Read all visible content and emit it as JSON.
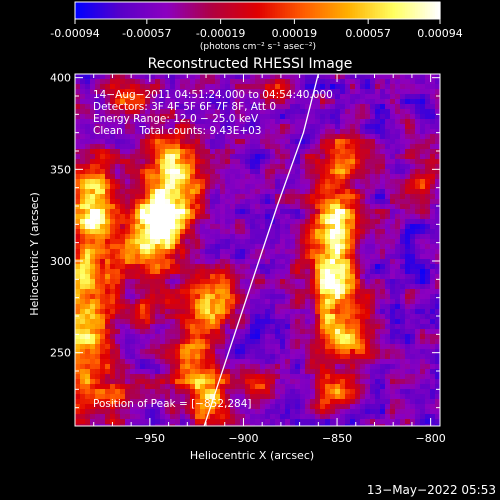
{
  "colorbar": {
    "tick_labels": [
      "-0.00094",
      "-0.00057",
      "-0.00019",
      "0.00019",
      "0.00057",
      "0.00094"
    ],
    "tick_values": [
      -0.00094,
      -0.00057,
      -0.00019,
      0.00019,
      0.00057,
      0.00094
    ],
    "range": [
      -0.00094,
      0.00094
    ],
    "units_label": "(photons cm⁻² s⁻¹ asec⁻²)",
    "colors": [
      "#0000ff",
      "#5a00c8",
      "#8c00c0",
      "#b00040",
      "#e00000",
      "#ff5a00",
      "#ffb000",
      "#ffff60",
      "#ffffff"
    ]
  },
  "chart_data": {
    "type": "heatmap",
    "title": "Reconstructed RHESSI Image",
    "xlabel": "Heliocentric X (arcsec)",
    "ylabel": "Heliocentric Y (arcsec)",
    "xlim": [
      -990,
      -795
    ],
    "ylim": [
      210,
      402
    ],
    "x_ticks": [
      -950,
      -900,
      -850,
      -800
    ],
    "x_tick_labels": [
      "−950",
      "−900",
      "−850",
      "−800"
    ],
    "y_ticks": [
      250,
      300,
      350,
      400
    ],
    "y_tick_labels": [
      "250",
      "300",
      "350",
      "400"
    ],
    "sources": [
      {
        "x": -985,
        "y": 270,
        "sx": 10,
        "sy": 40,
        "amp": 0.85
      },
      {
        "x": -978,
        "y": 335,
        "sx": 8,
        "sy": 20,
        "amp": 0.65
      },
      {
        "x": -938,
        "y": 345,
        "sx": 11,
        "sy": 17,
        "amp": 1.0
      },
      {
        "x": -953,
        "y": 308,
        "sx": 10,
        "sy": 12,
        "amp": 0.85
      },
      {
        "x": -943,
        "y": 322,
        "sx": 9,
        "sy": 10,
        "amp": 0.8
      },
      {
        "x": -918,
        "y": 278,
        "sx": 10,
        "sy": 12,
        "amp": 0.75
      },
      {
        "x": -928,
        "y": 245,
        "sx": 9,
        "sy": 12,
        "amp": 0.65
      },
      {
        "x": -918,
        "y": 222,
        "sx": 8,
        "sy": 10,
        "amp": 0.75
      },
      {
        "x": -948,
        "y": 275,
        "sx": 7,
        "sy": 8,
        "amp": 0.45
      },
      {
        "x": -852,
        "y": 290,
        "sx": 9,
        "sy": 18,
        "amp": 0.95
      },
      {
        "x": -852,
        "y": 323,
        "sx": 8,
        "sy": 13,
        "amp": 0.8
      },
      {
        "x": -848,
        "y": 355,
        "sx": 10,
        "sy": 10,
        "amp": 0.6
      },
      {
        "x": -842,
        "y": 258,
        "sx": 9,
        "sy": 10,
        "amp": 0.65
      },
      {
        "x": -852,
        "y": 230,
        "sx": 9,
        "sy": 8,
        "amp": 0.55
      },
      {
        "x": -892,
        "y": 232,
        "sx": 8,
        "sy": 8,
        "amp": 0.45
      },
      {
        "x": -960,
        "y": 390,
        "sx": 7,
        "sy": 8,
        "amp": 0.45
      },
      {
        "x": -882,
        "y": 395,
        "sx": 8,
        "sy": 6,
        "amp": 0.4
      },
      {
        "x": -965,
        "y": 225,
        "sx": 7,
        "sy": 8,
        "amp": 0.4
      },
      {
        "x": -805,
        "y": 345,
        "sx": 6,
        "sy": 8,
        "amp": 0.35
      }
    ],
    "limb_curve": {
      "x": [
        -921,
        -908,
        -895,
        -882,
        -868,
        -860
      ],
      "y": [
        210,
        250,
        290,
        330,
        370,
        402
      ]
    },
    "annotations": [
      "14−Aug−2011 04:51:24.000 to 04:54:40.000",
      "Detectors: 3F 4F 5F 6F 7F 8F, Att 0",
      "Energy Range: 12.0 − 25.0 keV",
      "Clean     Total counts: 9.43E+03"
    ],
    "peak_label": "Position of Peak = [−852,284]",
    "peak": [
      -852,
      284
    ],
    "grid": false
  },
  "footer": {
    "timestamp": "13−May−2022 05:53"
  }
}
